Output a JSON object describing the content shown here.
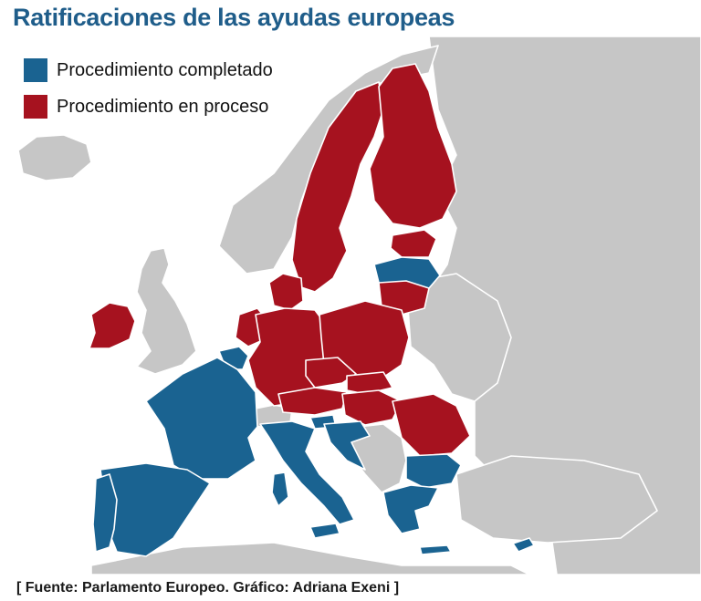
{
  "title": "Ratificaciones de las ayudas europeas",
  "legend": [
    {
      "label": "Procedimiento completado",
      "color": "#1a6391"
    },
    {
      "label": "Procedimiento en proceso",
      "color": "#a6121f"
    }
  ],
  "colors": {
    "background_land": "#c6c6c6",
    "sea": "#ffffff",
    "completed": "#1a6391",
    "in_process": "#a6121f"
  },
  "map": {
    "completed_countries": [
      "Portugal",
      "Spain",
      "France",
      "Belgium",
      "Italy",
      "Slovenia",
      "Croatia",
      "Cyprus",
      "Latvia",
      "Bulgaria",
      "Greece",
      "Luxembourg",
      "Malta"
    ],
    "in_process_countries": [
      "Ireland",
      "Netherlands",
      "Germany",
      "Denmark",
      "Sweden",
      "Finland",
      "Estonia",
      "Lithuania",
      "Poland",
      "Czech Republic",
      "Slovakia",
      "Austria",
      "Hungary",
      "Romania"
    ]
  },
  "source": "[ Fuente: Parlamento Europeo. Gráfico: Adriana Exeni ]"
}
